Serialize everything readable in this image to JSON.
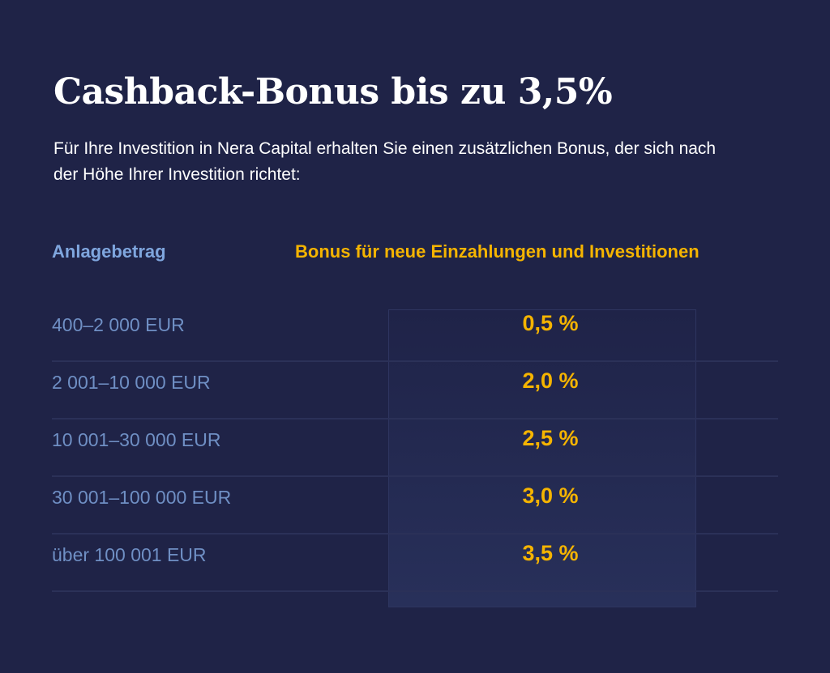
{
  "title": "Cashback-Bonus bis zu 3,5%",
  "subtitle": "Für Ihre Investition in Nera Capital erhalten Sie einen zusätzlichen Bonus, der sich nach der Höhe Ihrer Investition richtet:",
  "table": {
    "headers": [
      "Anlagebetrag",
      "Bonus für neue Einzahlungen und Investitionen"
    ],
    "rows": [
      {
        "amount": "400–2 000 EUR",
        "bonus": "0,5 %"
      },
      {
        "amount": "2 001–10 000 EUR",
        "bonus": "2,0 %"
      },
      {
        "amount": "10 001–30 000 EUR",
        "bonus": "2,5 %"
      },
      {
        "amount": "30 001–100 000 EUR",
        "bonus": "3,0 %"
      },
      {
        "amount": "über 100 001 EUR",
        "bonus": "3,5 %"
      }
    ]
  },
  "colors": {
    "background": "#1f2347",
    "accent": "#f5b400",
    "label": "#7fa6de"
  }
}
